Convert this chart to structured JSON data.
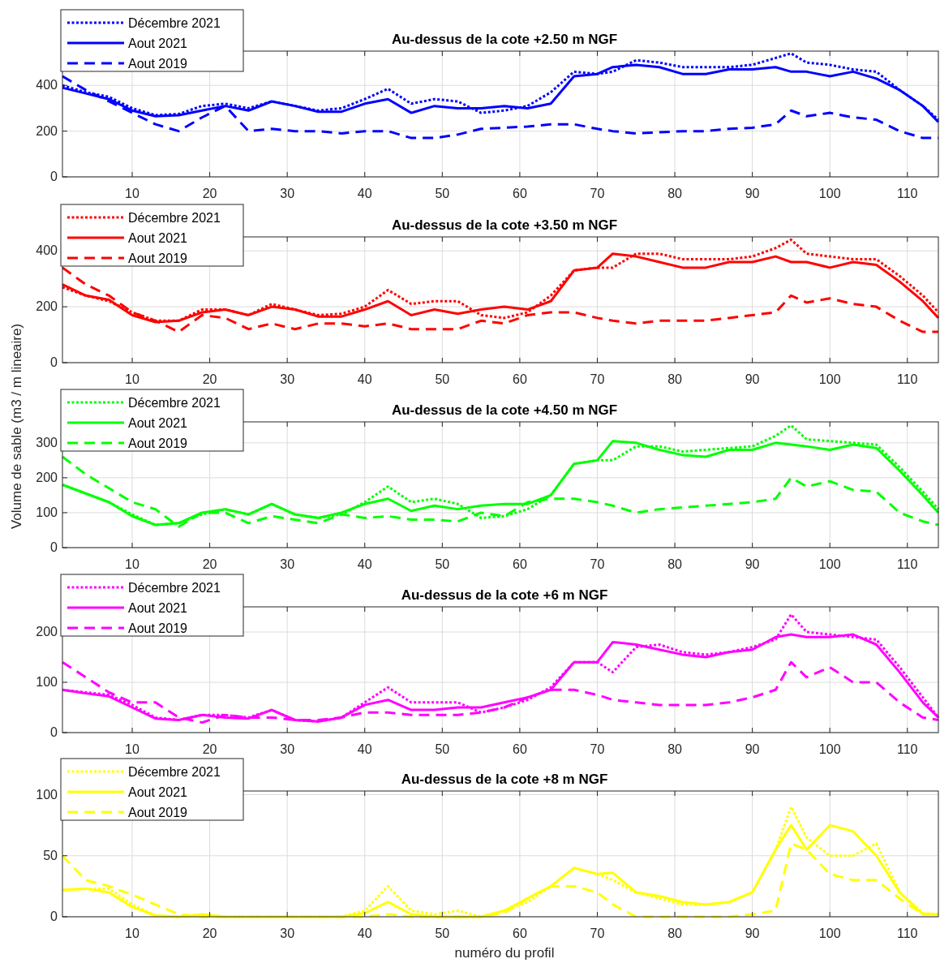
{
  "chart_data": [
    {
      "type": "line",
      "title": "Au-dessus de la cote +2.50 m NGF",
      "x": [
        1,
        4,
        7,
        10,
        13,
        16,
        19,
        22,
        25,
        28,
        31,
        34,
        37,
        40,
        43,
        46,
        49,
        52,
        55,
        58,
        61,
        64,
        67,
        70,
        72,
        75,
        78,
        81,
        84,
        87,
        90,
        93,
        95,
        97,
        100,
        103,
        106,
        109,
        112,
        114
      ],
      "xlim": [
        1,
        114
      ],
      "xticks": [
        10,
        20,
        30,
        40,
        50,
        60,
        70,
        80,
        90,
        100,
        110
      ],
      "ylim": [
        0,
        550
      ],
      "yticks": [
        0,
        200,
        400
      ],
      "grid": true,
      "legend": "top left",
      "series": [
        {
          "name": "Décembre 2021",
          "color": "#0000ff",
          "line_style": "dotted",
          "values": [
            400,
            370,
            350,
            300,
            270,
            275,
            310,
            320,
            300,
            330,
            310,
            290,
            300,
            340,
            385,
            320,
            340,
            330,
            280,
            290,
            310,
            370,
            460,
            450,
            460,
            510,
            500,
            480,
            480,
            480,
            490,
            520,
            540,
            500,
            490,
            470,
            460,
            380,
            310,
            250
          ]
        },
        {
          "name": "Aout 2021",
          "color": "#0000ff",
          "line_style": "solid",
          "values": [
            390,
            365,
            340,
            290,
            265,
            270,
            290,
            310,
            290,
            330,
            310,
            285,
            285,
            320,
            340,
            280,
            310,
            300,
            300,
            310,
            300,
            320,
            440,
            450,
            480,
            490,
            480,
            450,
            450,
            470,
            470,
            480,
            460,
            460,
            440,
            460,
            430,
            380,
            310,
            240
          ]
        },
        {
          "name": "Aout 2019",
          "color": "#0000ff",
          "line_style": "dashed",
          "values": [
            440,
            380,
            330,
            280,
            230,
            200,
            260,
            310,
            200,
            210,
            200,
            200,
            190,
            200,
            200,
            170,
            170,
            185,
            210,
            215,
            220,
            230,
            230,
            210,
            200,
            190,
            195,
            200,
            200,
            210,
            215,
            230,
            290,
            265,
            280,
            260,
            250,
            200,
            170,
            170
          ]
        }
      ]
    },
    {
      "type": "line",
      "title": "Au-dessus de la cote +3.50 m NGF",
      "x": [
        1,
        4,
        7,
        10,
        13,
        16,
        19,
        22,
        25,
        28,
        31,
        34,
        37,
        40,
        43,
        46,
        49,
        52,
        55,
        58,
        61,
        64,
        67,
        70,
        72,
        75,
        78,
        81,
        84,
        87,
        90,
        93,
        95,
        97,
        100,
        103,
        106,
        109,
        112,
        114
      ],
      "xlim": [
        1,
        114
      ],
      "xticks": [
        10,
        20,
        30,
        40,
        50,
        60,
        70,
        80,
        90,
        100,
        110
      ],
      "ylim": [
        0,
        450
      ],
      "yticks": [
        0,
        200,
        400
      ],
      "grid": true,
      "legend": "top left",
      "series": [
        {
          "name": "Décembre 2021",
          "color": "#ff0000",
          "line_style": "dotted",
          "values": [
            270,
            240,
            220,
            180,
            150,
            150,
            190,
            190,
            170,
            210,
            190,
            170,
            175,
            200,
            260,
            210,
            220,
            220,
            170,
            160,
            180,
            240,
            330,
            340,
            340,
            390,
            390,
            370,
            370,
            370,
            380,
            410,
            440,
            390,
            380,
            370,
            370,
            310,
            240,
            180
          ]
        },
        {
          "name": "Aout 2021",
          "color": "#ff0000",
          "line_style": "solid",
          "values": [
            280,
            240,
            225,
            170,
            145,
            150,
            180,
            190,
            170,
            200,
            190,
            165,
            165,
            190,
            220,
            170,
            190,
            175,
            190,
            200,
            190,
            220,
            330,
            340,
            390,
            380,
            360,
            340,
            340,
            360,
            360,
            380,
            360,
            360,
            340,
            360,
            350,
            290,
            220,
            160
          ]
        },
        {
          "name": "Aout 2019",
          "color": "#ff0000",
          "line_style": "dashed",
          "values": [
            340,
            280,
            240,
            180,
            150,
            110,
            170,
            160,
            120,
            140,
            120,
            140,
            140,
            130,
            140,
            120,
            120,
            120,
            150,
            140,
            170,
            180,
            180,
            160,
            150,
            140,
            150,
            150,
            150,
            160,
            170,
            180,
            240,
            215,
            230,
            210,
            200,
            150,
            110,
            110
          ]
        }
      ]
    },
    {
      "type": "line",
      "title": "Au-dessus de la cote +4.50 m NGF",
      "ylabel": "Volume de sable (m3 / m lineaire)",
      "x": [
        1,
        4,
        7,
        10,
        13,
        16,
        19,
        22,
        25,
        28,
        31,
        34,
        37,
        40,
        43,
        46,
        49,
        52,
        55,
        58,
        61,
        64,
        67,
        70,
        72,
        75,
        78,
        81,
        84,
        87,
        90,
        93,
        95,
        97,
        100,
        103,
        106,
        109,
        112,
        114
      ],
      "xlim": [
        1,
        114
      ],
      "xticks": [
        10,
        20,
        30,
        40,
        50,
        60,
        70,
        80,
        90,
        100,
        110
      ],
      "ylim": [
        0,
        360
      ],
      "yticks": [
        0,
        100,
        200,
        300
      ],
      "grid": true,
      "legend": "top left",
      "series": [
        {
          "name": "Décembre 2021",
          "color": "#00ff00",
          "line_style": "dotted",
          "values": [
            180,
            155,
            130,
            95,
            65,
            70,
            95,
            110,
            95,
            125,
            95,
            85,
            95,
            130,
            175,
            130,
            140,
            125,
            85,
            90,
            110,
            150,
            240,
            250,
            250,
            290,
            290,
            275,
            280,
            285,
            290,
            320,
            350,
            310,
            305,
            300,
            295,
            230,
            160,
            110
          ]
        },
        {
          "name": "Aout 2021",
          "color": "#00ff00",
          "line_style": "solid",
          "values": [
            180,
            155,
            130,
            90,
            65,
            70,
            100,
            110,
            95,
            125,
            95,
            85,
            100,
            125,
            140,
            105,
            120,
            110,
            120,
            125,
            125,
            150,
            240,
            250,
            305,
            300,
            280,
            265,
            260,
            280,
            280,
            300,
            295,
            290,
            280,
            295,
            285,
            220,
            150,
            100
          ]
        },
        {
          "name": "Aout 2019",
          "color": "#00ff00",
          "line_style": "dashed",
          "values": [
            260,
            210,
            170,
            130,
            110,
            60,
            100,
            100,
            70,
            90,
            80,
            70,
            95,
            85,
            90,
            80,
            80,
            75,
            100,
            90,
            130,
            140,
            140,
            130,
            120,
            100,
            110,
            115,
            120,
            125,
            130,
            140,
            200,
            175,
            190,
            165,
            160,
            100,
            75,
            65
          ]
        }
      ]
    },
    {
      "type": "line",
      "title": "Au-dessus de la cote +6 m NGF",
      "x": [
        1,
        4,
        7,
        10,
        13,
        16,
        19,
        22,
        25,
        28,
        31,
        34,
        37,
        40,
        43,
        46,
        49,
        52,
        55,
        58,
        61,
        64,
        67,
        70,
        72,
        75,
        78,
        81,
        84,
        87,
        90,
        93,
        95,
        97,
        100,
        103,
        106,
        109,
        112,
        114
      ],
      "xlim": [
        1,
        114
      ],
      "xticks": [
        10,
        20,
        30,
        40,
        50,
        60,
        70,
        80,
        90,
        100,
        110
      ],
      "ylim": [
        0,
        250
      ],
      "yticks": [
        0,
        100,
        200
      ],
      "grid": true,
      "legend": "top left",
      "series": [
        {
          "name": "Décembre 2021",
          "color": "#ff00ff",
          "line_style": "dotted",
          "values": [
            85,
            80,
            75,
            55,
            30,
            25,
            35,
            35,
            30,
            45,
            25,
            22,
            30,
            60,
            90,
            60,
            60,
            60,
            40,
            50,
            65,
            90,
            140,
            140,
            120,
            170,
            175,
            160,
            155,
            160,
            170,
            185,
            235,
            200,
            195,
            190,
            185,
            130,
            70,
            30
          ]
        },
        {
          "name": "Aout 2021",
          "color": "#ff00ff",
          "line_style": "solid",
          "values": [
            85,
            78,
            72,
            50,
            28,
            25,
            35,
            30,
            28,
            45,
            25,
            22,
            30,
            55,
            65,
            45,
            45,
            50,
            50,
            60,
            70,
            85,
            140,
            140,
            180,
            175,
            165,
            155,
            150,
            160,
            165,
            190,
            195,
            190,
            190,
            195,
            175,
            120,
            60,
            30
          ]
        },
        {
          "name": "Aout 2019",
          "color": "#ff00ff",
          "line_style": "dashed",
          "values": [
            140,
            110,
            80,
            60,
            60,
            30,
            20,
            35,
            30,
            30,
            25,
            25,
            30,
            40,
            40,
            35,
            35,
            35,
            40,
            50,
            70,
            85,
            85,
            75,
            65,
            60,
            55,
            55,
            55,
            60,
            70,
            85,
            140,
            110,
            130,
            100,
            100,
            60,
            30,
            25
          ]
        }
      ]
    },
    {
      "type": "line",
      "title": "Au-dessus de la cote +8 m NGF",
      "xlabel": "numéro du profil",
      "x": [
        1,
        4,
        7,
        10,
        13,
        16,
        19,
        22,
        25,
        28,
        31,
        34,
        37,
        40,
        43,
        46,
        49,
        52,
        55,
        58,
        61,
        64,
        67,
        70,
        72,
        75,
        78,
        81,
        84,
        87,
        90,
        93,
        95,
        97,
        100,
        103,
        106,
        109,
        112,
        114
      ],
      "xlim": [
        1,
        114
      ],
      "xticks": [
        10,
        20,
        30,
        40,
        50,
        60,
        70,
        80,
        90,
        100,
        110
      ],
      "ylim": [
        0,
        103
      ],
      "yticks": [
        0,
        50,
        100
      ],
      "grid": true,
      "legend": "top left",
      "series": [
        {
          "name": "Décembre 2021",
          "color": "#ffff00",
          "line_style": "dotted",
          "values": [
            22,
            23,
            23,
            10,
            1,
            0,
            2,
            0,
            0,
            0,
            0,
            0,
            0,
            5,
            25,
            5,
            2,
            5,
            0,
            5,
            12,
            25,
            40,
            35,
            30,
            20,
            15,
            10,
            10,
            12,
            20,
            55,
            90,
            65,
            50,
            50,
            60,
            20,
            3,
            2
          ]
        },
        {
          "name": "Aout 2021",
          "color": "#ffff00",
          "line_style": "solid",
          "values": [
            22,
            23,
            20,
            8,
            1,
            0,
            2,
            0,
            0,
            0,
            0,
            0,
            0,
            3,
            12,
            2,
            0,
            0,
            0,
            5,
            15,
            25,
            40,
            35,
            36,
            20,
            17,
            12,
            10,
            12,
            20,
            55,
            75,
            55,
            75,
            70,
            50,
            20,
            2,
            2
          ]
        },
        {
          "name": "Aout 2019",
          "color": "#ffff00",
          "line_style": "dashed",
          "values": [
            50,
            30,
            25,
            18,
            10,
            2,
            0,
            0,
            0,
            0,
            0,
            0,
            0,
            0,
            2,
            0,
            0,
            0,
            0,
            3,
            15,
            25,
            25,
            20,
            10,
            0,
            0,
            0,
            0,
            0,
            2,
            5,
            60,
            55,
            35,
            30,
            30,
            15,
            2,
            2
          ]
        }
      ]
    }
  ]
}
